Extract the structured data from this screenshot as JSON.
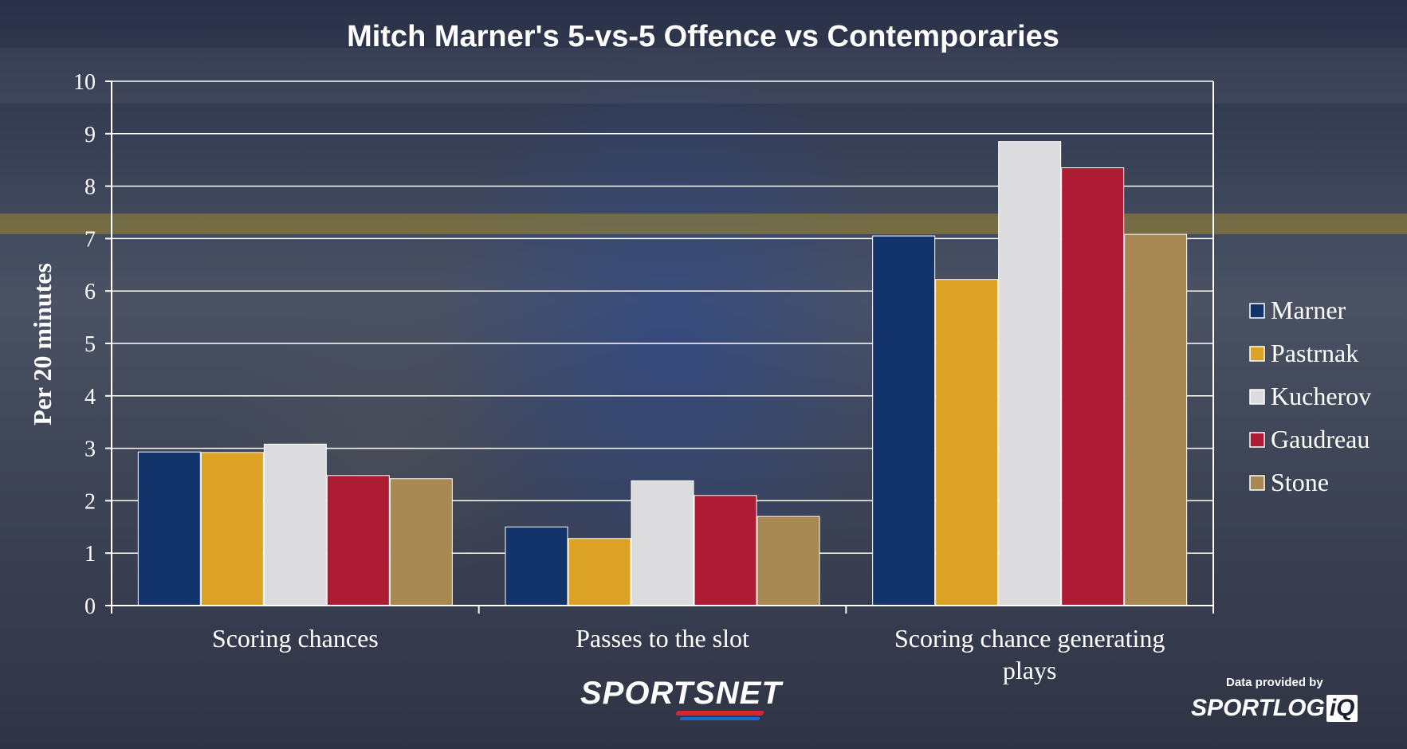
{
  "chart_data": {
    "type": "bar",
    "title": "Mitch Marner's 5-vs-5 Offence vs Contemporaries",
    "ylabel": "Per 20 minutes",
    "xlabel": "",
    "ylim": [
      0,
      10
    ],
    "yticks": [
      "0",
      "1",
      "2",
      "3",
      "4",
      "5",
      "6",
      "7",
      "8",
      "9",
      "10"
    ],
    "categories": [
      [
        "Scoring chances"
      ],
      [
        "Passes to the slot"
      ],
      [
        "Scoring chance generating",
        "plays"
      ]
    ],
    "series": [
      {
        "name": "Marner",
        "color": "#12346b",
        "values": [
          2.93,
          1.5,
          7.05
        ]
      },
      {
        "name": "Pastrnak",
        "color": "#dba226",
        "values": [
          2.92,
          1.28,
          6.22
        ]
      },
      {
        "name": "Kucherov",
        "color": "#dcdcde",
        "values": [
          3.08,
          2.38,
          8.85
        ]
      },
      {
        "name": "Gaudreau",
        "color": "#ad1c34",
        "values": [
          2.48,
          2.1,
          8.35
        ]
      },
      {
        "name": "Stone",
        "color": "#a88953",
        "values": [
          2.42,
          1.7,
          7.08
        ]
      }
    ],
    "grid": true,
    "legend_position": "right"
  },
  "branding": {
    "sportsnet": "SPORTSNET",
    "provided_by": "Data provided by",
    "sportlogiq": "SPORTLOG",
    "sportlogiq_suffix": "iQ"
  }
}
